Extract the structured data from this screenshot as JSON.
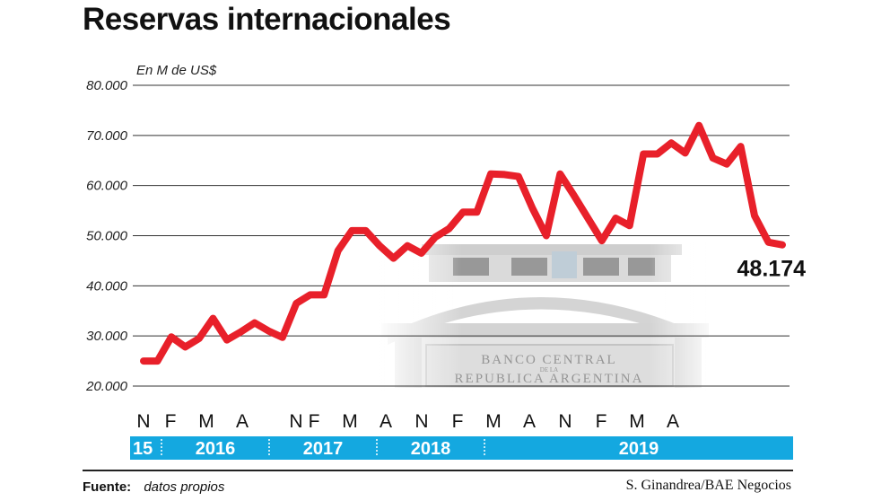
{
  "header": {
    "title": "Reservas internacionales",
    "unit": "En M de US$"
  },
  "footer": {
    "source_label": "Fuente:",
    "source_text": "datos propios",
    "credit": "S. Ginandrea/BAE Negocios"
  },
  "colors": {
    "line": "#e8202a",
    "timeline": "#14a8e0",
    "grid": "#333333"
  },
  "chart_data": {
    "type": "line",
    "ylim": [
      20000,
      80000
    ],
    "yticks": [
      20000,
      30000,
      40000,
      50000,
      60000,
      70000,
      80000
    ],
    "ytick_labels": [
      "20.000",
      "30.000",
      "40.000",
      "50.000",
      "60.000",
      "70.000",
      "80.000"
    ],
    "x_month_labels": [
      "N",
      "F",
      "M",
      "A",
      "N",
      "F",
      "M",
      "A",
      "N",
      "F",
      "M",
      "A",
      "N",
      "F",
      "M",
      "A"
    ],
    "x_month_index": [
      0,
      3,
      7,
      11,
      17,
      19,
      23,
      27,
      31,
      35,
      39,
      43,
      47,
      51,
      55,
      59
    ],
    "year_labels": [
      "15",
      "2016",
      "2017",
      "2018",
      "2019"
    ],
    "year_start_index": [
      0,
      2,
      14,
      26,
      38
    ],
    "end_index": 62,
    "values": [
      25000,
      25000,
      29800,
      27800,
      29500,
      33500,
      29200,
      30800,
      32600,
      31000,
      29700,
      36500,
      38200,
      38200,
      47000,
      51000,
      51000,
      48000,
      45500,
      48000,
      46500,
      49700,
      51400,
      54700,
      54700,
      62300,
      62200,
      61800,
      55500,
      50000,
      62300,
      58000,
      53500,
      49000,
      53500,
      52000,
      66300,
      66300,
      68500,
      66500,
      72000,
      65500,
      64300,
      67800,
      54000,
      48700,
      48174
    ],
    "last_value_label": "48.174"
  }
}
